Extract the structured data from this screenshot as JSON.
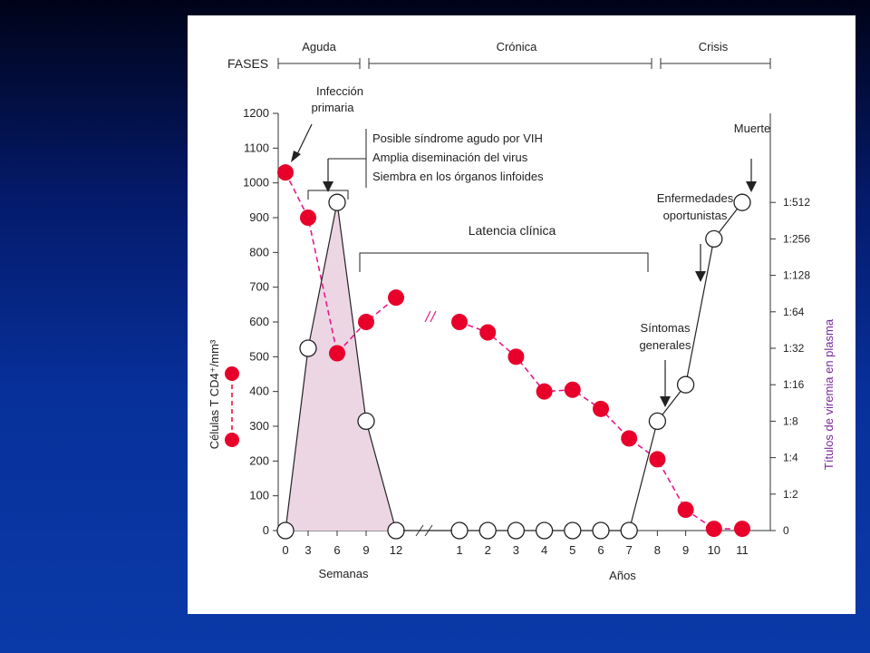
{
  "chart_data": {
    "type": "line",
    "phases_label": "FASES",
    "phases": [
      "Aguda",
      "Crónica",
      "Crisis"
    ],
    "x_weeks": {
      "label": "Semanas",
      "ticks": [
        "0",
        "3",
        "6",
        "9",
        "12"
      ]
    },
    "x_years": {
      "label": "Años",
      "ticks": [
        "1",
        "2",
        "3",
        "4",
        "5",
        "6",
        "7",
        "8",
        "9",
        "10",
        "11"
      ]
    },
    "y_left": {
      "label": "Células T CD4⁺/mm³",
      "ticks": [
        0,
        100,
        200,
        300,
        400,
        500,
        600,
        700,
        800,
        900,
        1000,
        1100,
        1200
      ],
      "range": [
        0,
        1200
      ]
    },
    "y_right": {
      "label": "Títulos de viremia en plasma",
      "ticks": [
        "0",
        "1:2",
        "1:4",
        "1:8",
        "1:16",
        "1:32",
        "1:64",
        "1:128",
        "1:256",
        "1:512"
      ]
    },
    "series": [
      {
        "marker": "filled-red",
        "color": "#e8002a",
        "points": [
          {
            "x": "0",
            "period": "weeks",
            "y": 1030
          },
          {
            "x": "3",
            "period": "weeks",
            "y": 900
          },
          {
            "x": "6",
            "period": "weeks",
            "y": 510
          },
          {
            "x": "9",
            "period": "weeks",
            "y": 600
          },
          {
            "x": "12",
            "period": "weeks",
            "y": 670
          },
          {
            "x": "1",
            "period": "years",
            "y": 600
          },
          {
            "x": "2",
            "period": "years",
            "y": 570
          },
          {
            "x": "3",
            "period": "years",
            "y": 500
          },
          {
            "x": "4",
            "period": "years",
            "y": 400
          },
          {
            "x": "5",
            "period": "years",
            "y": 405
          },
          {
            "x": "6",
            "period": "years",
            "y": 350
          },
          {
            "x": "7",
            "period": "years",
            "y": 265
          },
          {
            "x": "8",
            "period": "years",
            "y": 205
          },
          {
            "x": "9",
            "period": "years",
            "y": 60
          },
          {
            "x": "10",
            "period": "years",
            "y": 5
          },
          {
            "x": "11",
            "period": "years",
            "y": 5
          }
        ]
      },
      {
        "marker": "open-circle",
        "color": "#222222",
        "points": [
          {
            "x": "0",
            "period": "weeks",
            "y": "0"
          },
          {
            "x": "3",
            "period": "weeks",
            "y": "1:32"
          },
          {
            "x": "6",
            "period": "weeks",
            "y": "1:512"
          },
          {
            "x": "9",
            "period": "weeks",
            "y": "1:8"
          },
          {
            "x": "12",
            "period": "weeks",
            "y": "0"
          },
          {
            "x": "1",
            "period": "years",
            "y": "0"
          },
          {
            "x": "2",
            "period": "years",
            "y": "0"
          },
          {
            "x": "3",
            "period": "years",
            "y": "0"
          },
          {
            "x": "4",
            "period": "years",
            "y": "0"
          },
          {
            "x": "5",
            "period": "years",
            "y": "0"
          },
          {
            "x": "6",
            "period": "years",
            "y": "0"
          },
          {
            "x": "7",
            "period": "years",
            "y": "0"
          },
          {
            "x": "8",
            "period": "years",
            "y": "1:8"
          },
          {
            "x": "9",
            "period": "years",
            "y": "1:16"
          },
          {
            "x": "10",
            "period": "years",
            "y": "1:256"
          },
          {
            "x": "11",
            "period": "years",
            "y": "1:512"
          }
        ]
      }
    ],
    "annotations": {
      "infeccion": [
        "Infección",
        "primaria"
      ],
      "sindrome": [
        "Posible síndrome agudo por VIH",
        "Amplia diseminación del virus",
        "Siembra en los órganos linfoides"
      ],
      "latencia": "Latencia clínica",
      "enfermedades": [
        "Enfermedades",
        "oportunistas"
      ],
      "muerte": "Muerte",
      "sintomas": [
        "Síntomas",
        "generales"
      ]
    }
  }
}
